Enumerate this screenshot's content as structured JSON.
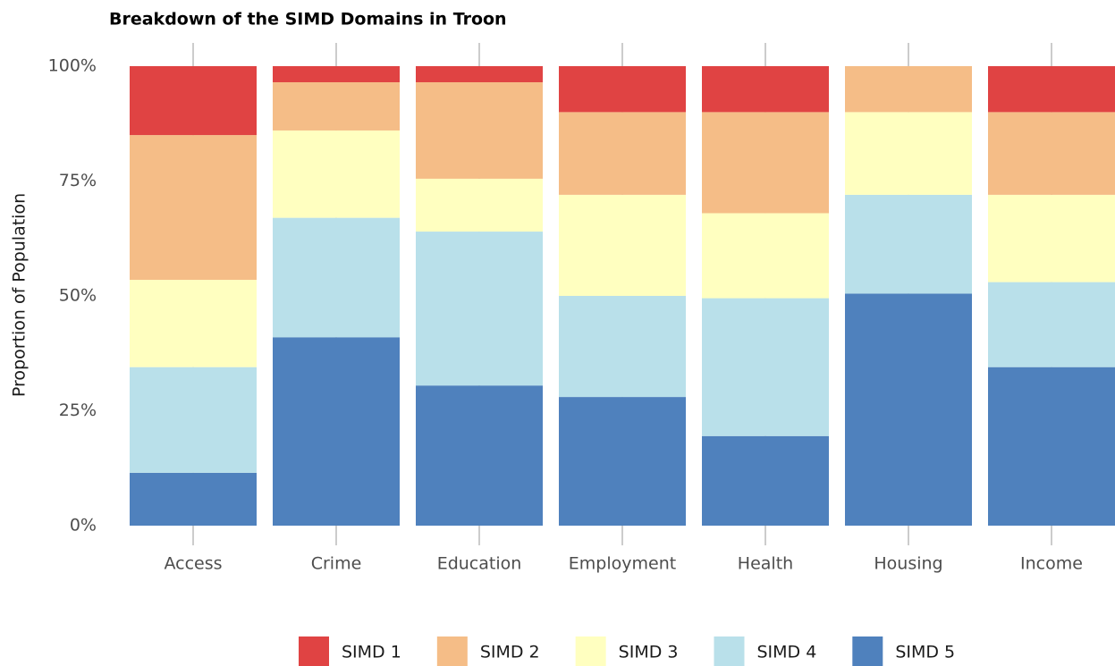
{
  "chart_data": {
    "type": "stacked-bar",
    "title": "Breakdown of the SIMD Domains in Troon",
    "y_label": "Proportion of Population",
    "categories": [
      "Access",
      "Crime",
      "Education",
      "Employment",
      "Health",
      "Housing",
      "Income"
    ],
    "series": [
      {
        "name": "SIMD 1",
        "color": "#e04343",
        "values": [
          15,
          3.5,
          3.5,
          10,
          10,
          0,
          10
        ]
      },
      {
        "name": "SIMD 2",
        "color": "#f5bd87",
        "values": [
          31.5,
          10.5,
          21,
          18,
          22,
          10,
          18
        ]
      },
      {
        "name": "SIMD 3",
        "color": "#ffffc0",
        "values": [
          19,
          19,
          11.5,
          22,
          18.5,
          18,
          19
        ]
      },
      {
        "name": "SIMD 4",
        "color": "#b9e0ea",
        "values": [
          23,
          26,
          33.5,
          22,
          30,
          21.5,
          18.5
        ]
      },
      {
        "name": "SIMD 5",
        "color": "#4f81bd",
        "values": [
          11.5,
          41,
          30.5,
          28,
          19.5,
          50.5,
          34.5
        ]
      }
    ],
    "ylim": [
      0,
      100
    ],
    "yticks": [
      {
        "value": 0,
        "label": "0%"
      },
      {
        "value": 25,
        "label": "25%"
      },
      {
        "value": 50,
        "label": "50%"
      },
      {
        "value": 75,
        "label": "75%"
      },
      {
        "value": 100,
        "label": "100%"
      }
    ],
    "legend": "bottom"
  }
}
